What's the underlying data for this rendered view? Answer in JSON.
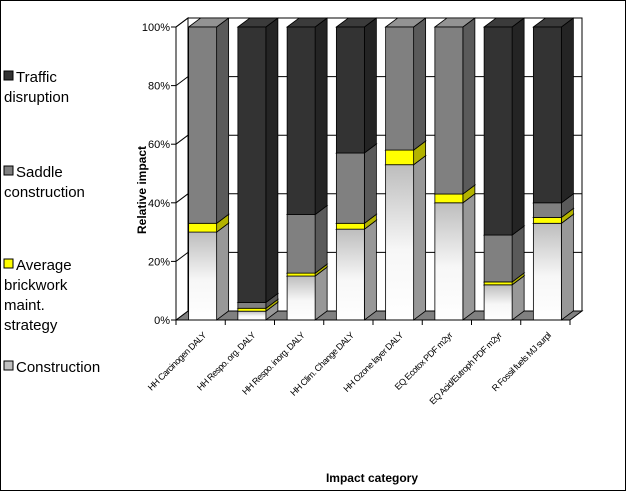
{
  "chart_data": {
    "type": "bar",
    "stacked": "percent",
    "three_d": true,
    "xlabel": "Impact category",
    "ylabel": "Relative impact",
    "y_ticks": [
      "0%",
      "20%",
      "40%",
      "60%",
      "80%",
      "100%"
    ],
    "ylim": [
      0,
      100
    ],
    "grid": true,
    "legend_position": "left",
    "categories": [
      "HH Carcinogen DALY",
      "HH Respo. org. DALY",
      "HH Respo. inorg. DALY",
      "HH Clim. Change DALY",
      "HH Ozone layer DALY",
      "EQ Ecotox PDF m2yr",
      "EQ Acid/Eutroph PDF m2yr",
      "R Fossil fuels MJ surpl"
    ],
    "series": [
      {
        "name": "Construction",
        "color": "#f2f2f2",
        "values": [
          30,
          3,
          15,
          31,
          53,
          40,
          12,
          33
        ]
      },
      {
        "name": "Average brickwork maint. strategy",
        "color": "#ffff00",
        "values": [
          3,
          1,
          1,
          2,
          5,
          3,
          1,
          2
        ]
      },
      {
        "name": "Saddle construction",
        "color": "#808080",
        "values": [
          67,
          2,
          20,
          24,
          42,
          57,
          16,
          5
        ]
      },
      {
        "name": "Traffic disruption",
        "color": "#333333",
        "values": [
          0,
          94,
          64,
          43,
          0,
          0,
          71,
          60
        ]
      }
    ],
    "legend_order": [
      "Traffic disruption",
      "Saddle construction",
      "Average brickwork maint. strategy",
      "Construction"
    ]
  }
}
